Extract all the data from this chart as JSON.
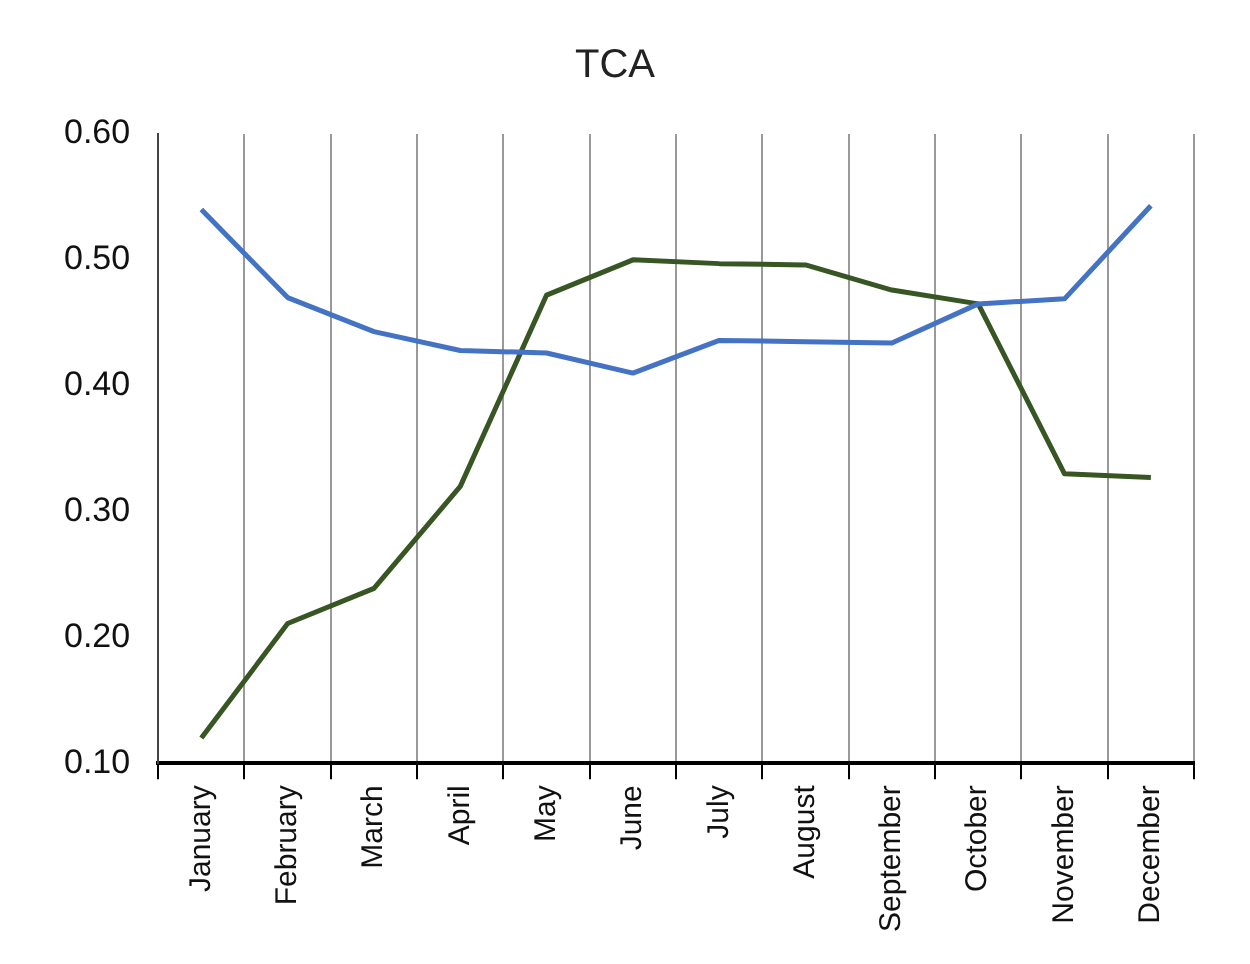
{
  "chart_data": {
    "type": "line",
    "title": "TCA",
    "categories": [
      "January",
      "February",
      "March",
      "April",
      "May",
      "June",
      "July",
      "August",
      "September",
      "October",
      "November",
      "December"
    ],
    "series": [
      {
        "color": "#4472c4",
        "values": [
          0.54,
          0.47,
          0.443,
          0.428,
          0.426,
          0.41,
          0.436,
          0.435,
          0.434,
          0.465,
          0.469,
          0.543
        ]
      },
      {
        "color": "#375623",
        "values": [
          0.12,
          0.211,
          0.239,
          0.32,
          0.472,
          0.5,
          0.497,
          0.496,
          0.476,
          0.465,
          0.33,
          0.327
        ]
      }
    ],
    "ylim": [
      0.1,
      0.6
    ],
    "yticks": [
      {
        "value": 0.1,
        "label": "0.10"
      },
      {
        "value": 0.2,
        "label": "0.20"
      },
      {
        "value": 0.3,
        "label": "0.30"
      },
      {
        "value": 0.4,
        "label": "0.40"
      },
      {
        "value": 0.5,
        "label": "0.50"
      },
      {
        "value": 0.6,
        "label": "0.60"
      }
    ],
    "grid": "x",
    "legend": false,
    "marker": "none",
    "line_style": "solid"
  }
}
